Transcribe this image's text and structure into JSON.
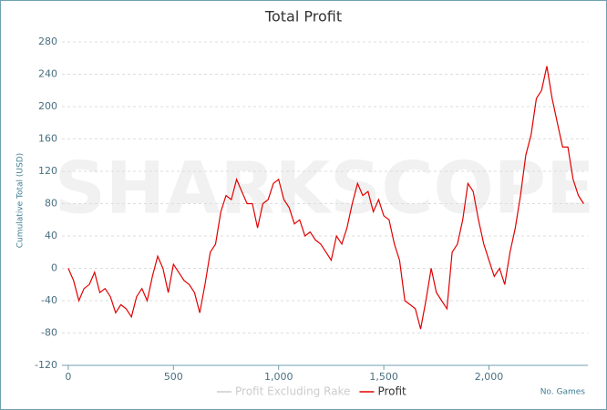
{
  "chart_data": {
    "type": "line",
    "title": "Total Profit",
    "watermark": "SHARKSCOPE",
    "y_label": "Cumulative Total (USD)",
    "x_label": "No. Games",
    "xlim": [
      -30,
      2470
    ],
    "ylim": [
      -120,
      280
    ],
    "xticks": [
      0,
      500,
      {
        "value": 1000,
        "label": "1,000"
      },
      {
        "value": 1500,
        "label": "1,500"
      },
      {
        "value": 2000,
        "label": "2,000"
      }
    ],
    "yticks": [
      -120,
      -80,
      -40,
      0,
      40,
      80,
      120,
      160,
      200,
      240,
      280
    ],
    "grid": true,
    "legend": "bottom",
    "x": [
      0,
      25,
      50,
      75,
      100,
      125,
      150,
      175,
      200,
      225,
      250,
      275,
      300,
      325,
      350,
      375,
      400,
      425,
      450,
      475,
      500,
      525,
      550,
      575,
      600,
      625,
      650,
      675,
      700,
      725,
      750,
      775,
      800,
      825,
      850,
      875,
      900,
      925,
      950,
      975,
      1000,
      1025,
      1050,
      1075,
      1100,
      1125,
      1150,
      1175,
      1200,
      1225,
      1250,
      1275,
      1300,
      1325,
      1350,
      1375,
      1400,
      1425,
      1450,
      1475,
      1500,
      1525,
      1550,
      1575,
      1600,
      1625,
      1650,
      1675,
      1700,
      1725,
      1750,
      1775,
      1800,
      1825,
      1850,
      1875,
      1900,
      1925,
      1950,
      1975,
      2000,
      2025,
      2050,
      2075,
      2100,
      2125,
      2150,
      2175,
      2200,
      2225,
      2250,
      2275,
      2300,
      2325,
      2350,
      2375,
      2400,
      2425,
      2450
    ],
    "series": [
      {
        "name": "Profit Excluding Rake",
        "color": "#cccccc",
        "visible": false,
        "values": [
          null,
          null,
          null,
          null,
          null,
          null,
          null,
          null,
          null,
          null,
          null,
          null,
          null,
          null,
          null,
          null,
          null,
          null,
          null,
          null,
          null,
          null,
          null,
          null,
          null,
          null,
          null,
          null,
          null,
          null,
          null,
          null,
          null,
          null,
          null,
          null,
          null,
          null,
          null,
          null,
          null,
          null,
          null,
          null,
          null,
          null,
          null,
          null,
          null,
          null,
          null,
          null,
          null,
          null,
          null,
          null,
          null,
          null,
          null,
          null,
          null,
          null,
          null,
          null,
          null,
          null,
          null,
          null,
          null,
          null,
          null,
          null,
          null,
          null,
          null,
          null,
          null,
          null,
          null,
          null,
          null,
          null,
          null,
          null,
          null,
          null,
          null,
          null,
          null,
          null,
          null,
          null,
          null,
          null,
          null,
          null,
          null,
          null,
          null
        ]
      },
      {
        "name": "Profit",
        "color": "#e00000",
        "visible": true,
        "values": [
          0,
          -15,
          -40,
          -25,
          -20,
          -5,
          -30,
          -25,
          -35,
          -55,
          -45,
          -50,
          -60,
          -35,
          -25,
          -40,
          -10,
          15,
          0,
          -30,
          5,
          -5,
          -15,
          -20,
          -30,
          -55,
          -20,
          20,
          30,
          70,
          90,
          85,
          110,
          95,
          80,
          80,
          50,
          80,
          85,
          105,
          110,
          85,
          75,
          55,
          60,
          40,
          45,
          35,
          30,
          20,
          10,
          40,
          30,
          50,
          80,
          105,
          90,
          95,
          70,
          85,
          65,
          60,
          30,
          10,
          -40,
          -45,
          -50,
          -75,
          -40,
          0,
          -30,
          -40,
          -50,
          20,
          30,
          60,
          105,
          95,
          60,
          30,
          10,
          -10,
          0,
          -20,
          20,
          50,
          90,
          140,
          165,
          210,
          220,
          250,
          210,
          180,
          150,
          150,
          110,
          90,
          80
        ]
      }
    ]
  }
}
